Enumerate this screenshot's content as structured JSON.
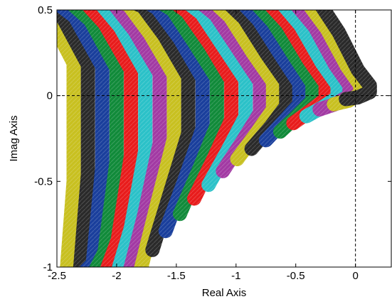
{
  "chart_data": {
    "type": "line",
    "title": "",
    "xlabel": "Real Axis",
    "ylabel": "Imag Axis",
    "xlim": [
      -2.5,
      0.3
    ],
    "ylim": [
      -1,
      0.5
    ],
    "xticks": [
      -2.5,
      -2,
      -1.5,
      -1,
      -0.5,
      0
    ],
    "xtick_labels": [
      "-2.5",
      "-2",
      "-1.5",
      "-1",
      "-0.5",
      "0"
    ],
    "yticks": [
      -1,
      -0.5,
      0,
      0.5
    ],
    "ytick_labels": [
      "-1",
      "-0.5",
      "0",
      "0.5"
    ],
    "grid": false,
    "reference_lines": [
      {
        "orientation": "horizontal",
        "value": 0,
        "style": "dashed"
      },
      {
        "orientation": "vertical",
        "value": 0,
        "style": "dashed"
      }
    ],
    "palette": [
      "#1a3f9c",
      "#118a3a",
      "#e81c1c",
      "#2bc1c8",
      "#a23aa3",
      "#c8c020",
      "#2a2a2a"
    ],
    "series": [
      {
        "color": "#2a2a2a",
        "values": [
          [
            -0.08,
            -0.02
          ],
          [
            0.02,
            -0.01
          ],
          [
            0.12,
            0.02
          ],
          [
            0.12,
            0.06
          ],
          [
            0.02,
            0.15
          ],
          [
            -0.14,
            0.37
          ],
          [
            -0.31,
            0.55
          ]
        ]
      },
      {
        "color": "#c8c020",
        "values": [
          [
            -0.18,
            -0.05
          ],
          [
            -0.06,
            -0.03
          ],
          [
            0.04,
            0.01
          ],
          [
            0.04,
            0.06
          ],
          [
            -0.07,
            0.17
          ],
          [
            -0.24,
            0.39
          ],
          [
            -0.41,
            0.55
          ]
        ]
      },
      {
        "color": "#a23aa3",
        "values": [
          [
            -0.3,
            -0.08
          ],
          [
            -0.17,
            -0.05
          ],
          [
            -0.05,
            0.0
          ],
          [
            -0.05,
            0.06
          ],
          [
            -0.17,
            0.18
          ],
          [
            -0.34,
            0.4
          ],
          [
            -0.52,
            0.55
          ]
        ]
      },
      {
        "color": "#2bc1c8",
        "values": [
          [
            -0.41,
            -0.12
          ],
          [
            -0.28,
            -0.07
          ],
          [
            -0.15,
            -0.01
          ],
          [
            -0.15,
            0.06
          ],
          [
            -0.28,
            0.19
          ],
          [
            -0.46,
            0.41
          ],
          [
            -0.63,
            0.55
          ]
        ]
      },
      {
        "color": "#e81c1c",
        "values": [
          [
            -0.52,
            -0.16
          ],
          [
            -0.38,
            -0.09
          ],
          [
            -0.25,
            -0.02
          ],
          [
            -0.25,
            0.07
          ],
          [
            -0.39,
            0.21
          ],
          [
            -0.57,
            0.42
          ],
          [
            -0.74,
            0.55
          ]
        ]
      },
      {
        "color": "#118a3a",
        "values": [
          [
            -0.63,
            -0.21
          ],
          [
            -0.49,
            -0.12
          ],
          [
            -0.36,
            -0.03
          ],
          [
            -0.36,
            0.07
          ],
          [
            -0.5,
            0.22
          ],
          [
            -0.69,
            0.43
          ],
          [
            -0.85,
            0.55
          ]
        ]
      },
      {
        "color": "#1a3f9c",
        "values": [
          [
            -0.75,
            -0.26
          ],
          [
            -0.6,
            -0.15
          ],
          [
            -0.47,
            -0.05
          ],
          [
            -0.47,
            0.07
          ],
          [
            -0.62,
            0.23
          ],
          [
            -0.81,
            0.44
          ],
          [
            -0.96,
            0.55
          ]
        ]
      },
      {
        "color": "#2a2a2a",
        "values": [
          [
            -0.87,
            -0.31
          ],
          [
            -0.71,
            -0.18
          ],
          [
            -0.58,
            -0.06
          ],
          [
            -0.58,
            0.08
          ],
          [
            -0.74,
            0.24
          ],
          [
            -0.93,
            0.45
          ],
          [
            -1.08,
            0.55
          ]
        ]
      },
      {
        "color": "#c8c020",
        "values": [
          [
            -0.99,
            -0.37
          ],
          [
            -0.83,
            -0.22
          ],
          [
            -0.69,
            -0.08
          ],
          [
            -0.69,
            0.08
          ],
          [
            -0.86,
            0.25
          ],
          [
            -1.05,
            0.46
          ],
          [
            -1.19,
            0.55
          ]
        ]
      },
      {
        "color": "#a23aa3",
        "values": [
          [
            -1.11,
            -0.44
          ],
          [
            -0.95,
            -0.27
          ],
          [
            -0.8,
            -0.1
          ],
          [
            -0.8,
            0.08
          ],
          [
            -0.98,
            0.27
          ],
          [
            -1.17,
            0.47
          ],
          [
            -1.31,
            0.55
          ]
        ]
      },
      {
        "color": "#2bc1c8",
        "values": [
          [
            -1.23,
            -0.52
          ],
          [
            -1.07,
            -0.32
          ],
          [
            -0.92,
            -0.12
          ],
          [
            -0.92,
            0.09
          ],
          [
            -1.1,
            0.28
          ],
          [
            -1.29,
            0.48
          ],
          [
            -1.42,
            0.55
          ]
        ]
      },
      {
        "color": "#e81c1c",
        "values": [
          [
            -1.35,
            -0.6
          ],
          [
            -1.19,
            -0.37
          ],
          [
            -1.04,
            -0.14
          ],
          [
            -1.04,
            0.09
          ],
          [
            -1.22,
            0.3
          ],
          [
            -1.41,
            0.49
          ],
          [
            -1.53,
            0.55
          ]
        ]
      },
      {
        "color": "#118a3a",
        "values": [
          [
            -1.47,
            -0.69
          ],
          [
            -1.31,
            -0.43
          ],
          [
            -1.16,
            -0.17
          ],
          [
            -1.16,
            0.1
          ],
          [
            -1.35,
            0.31
          ],
          [
            -1.53,
            0.5
          ],
          [
            -1.65,
            0.55
          ]
        ]
      },
      {
        "color": "#1a3f9c",
        "values": [
          [
            -1.59,
            -0.79
          ],
          [
            -1.43,
            -0.49
          ],
          [
            -1.28,
            -0.19
          ],
          [
            -1.28,
            0.1
          ],
          [
            -1.47,
            0.33
          ],
          [
            -1.66,
            0.51
          ],
          [
            -1.76,
            0.55
          ]
        ]
      },
      {
        "color": "#2a2a2a",
        "values": [
          [
            -1.7,
            -0.9
          ],
          [
            -1.55,
            -0.56
          ],
          [
            -1.4,
            -0.22
          ],
          [
            -1.4,
            0.11
          ],
          [
            -1.6,
            0.35
          ],
          [
            -1.78,
            0.52
          ],
          [
            -1.88,
            0.55
          ]
        ]
      },
      {
        "color": "#c8c020",
        "values": [
          [
            -1.8,
            -1.02
          ],
          [
            -1.66,
            -0.63
          ],
          [
            -1.52,
            -0.25
          ],
          [
            -1.52,
            0.12
          ],
          [
            -1.72,
            0.36
          ],
          [
            -1.9,
            0.53
          ],
          [
            -2.0,
            0.55
          ]
        ]
      },
      {
        "color": "#a23aa3",
        "values": [
          [
            -1.9,
            -1.05
          ],
          [
            -1.77,
            -0.7
          ],
          [
            -1.64,
            -0.28
          ],
          [
            -1.64,
            0.13
          ],
          [
            -1.85,
            0.38
          ],
          [
            -2.03,
            0.54
          ],
          [
            -2.12,
            0.55
          ]
        ]
      },
      {
        "color": "#2bc1c8",
        "values": [
          [
            -2.0,
            -1.05
          ],
          [
            -1.88,
            -0.77
          ],
          [
            -1.76,
            -0.32
          ],
          [
            -1.76,
            0.14
          ],
          [
            -1.97,
            0.4
          ],
          [
            -2.15,
            0.55
          ],
          [
            -2.24,
            0.55
          ]
        ]
      },
      {
        "color": "#e81c1c",
        "values": [
          [
            -2.1,
            -1.05
          ],
          [
            -1.99,
            -0.84
          ],
          [
            -1.88,
            -0.35
          ],
          [
            -1.88,
            0.15
          ],
          [
            -2.1,
            0.42
          ],
          [
            -2.27,
            0.55
          ],
          [
            -2.36,
            0.55
          ]
        ]
      },
      {
        "color": "#118a3a",
        "values": [
          [
            -2.2,
            -1.05
          ],
          [
            -2.1,
            -0.91
          ],
          [
            -2.0,
            -0.38
          ],
          [
            -2.0,
            0.16
          ],
          [
            -2.22,
            0.44
          ],
          [
            -2.4,
            0.55
          ],
          [
            -2.48,
            0.55
          ]
        ]
      },
      {
        "color": "#1a3f9c",
        "values": [
          [
            -2.3,
            -1.05
          ],
          [
            -2.2,
            -0.98
          ],
          [
            -2.12,
            -0.42
          ],
          [
            -2.12,
            0.17
          ],
          [
            -2.35,
            0.46
          ],
          [
            -2.52,
            0.55
          ],
          [
            -2.6,
            0.55
          ]
        ]
      },
      {
        "color": "#2a2a2a",
        "values": [
          [
            -2.4,
            -1.05
          ],
          [
            -2.31,
            -1.05
          ],
          [
            -2.24,
            -0.46
          ],
          [
            -2.24,
            0.18
          ],
          [
            -2.47,
            0.48
          ],
          [
            -2.6,
            0.55
          ],
          [
            -2.6,
            0.55
          ]
        ]
      },
      {
        "color": "#c8c020",
        "values": [
          [
            -2.5,
            -1.05
          ],
          [
            -2.42,
            -1.05
          ],
          [
            -2.36,
            -0.5
          ],
          [
            -2.36,
            0.19
          ],
          [
            -2.59,
            0.5
          ],
          [
            -2.6,
            0.55
          ],
          [
            -2.6,
            0.55
          ]
        ]
      }
    ]
  }
}
